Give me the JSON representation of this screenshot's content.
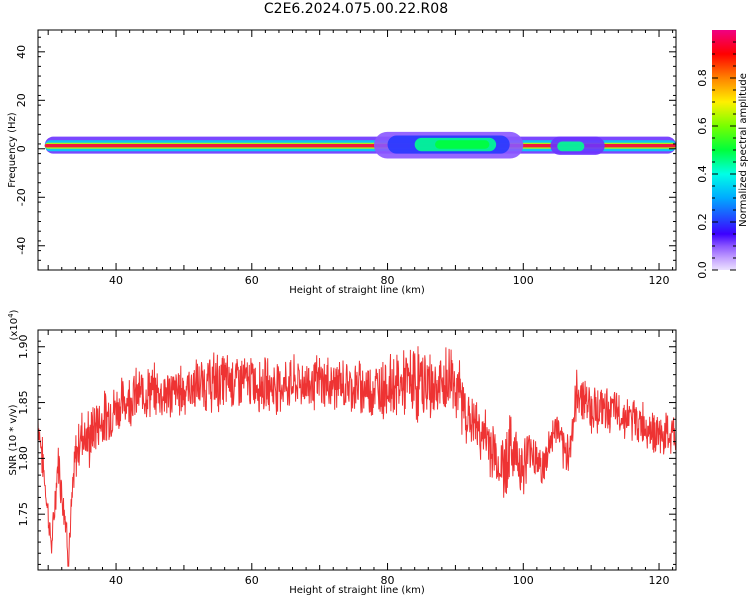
{
  "title": "C2E6.2024.075.00.22.R08",
  "colors": {
    "snr_line": "#ee3333",
    "axis": "#000000"
  },
  "chart_data": [
    {
      "type": "heatmap",
      "title": "C2E6.2024.075.00.22.R08",
      "xlabel": "Height of straight line (km)",
      "ylabel": "Frequency (Hz)",
      "xlim": [
        28.5,
        122.5
      ],
      "ylim": [
        -50,
        49
      ],
      "x_ticks": [
        40,
        60,
        80,
        100,
        120
      ],
      "y_ticks": [
        -40,
        -20,
        0,
        20,
        40
      ],
      "colorbar": {
        "label": "Normalized spectral amplitude",
        "ticks": [
          "0.0",
          "0.2",
          "0.4",
          "0.6",
          "0.8"
        ],
        "range": [
          0,
          1
        ],
        "colormap": "rainbow"
      },
      "bands": [
        {
          "x": [
            29.5,
            122.5
          ],
          "y": [
            -2,
            5
          ],
          "level": 0.12
        },
        {
          "x": [
            29.5,
            122.5
          ],
          "y": [
            -1,
            3.5
          ],
          "level": 0.35
        },
        {
          "x": [
            29.5,
            122.5
          ],
          "y": [
            0,
            2.5
          ],
          "level": 0.65
        },
        {
          "x": [
            29.5,
            122.5
          ],
          "y": [
            0.6,
            2.0
          ],
          "level": 0.95
        },
        {
          "x": [
            78,
            100
          ],
          "y": [
            -4,
            7
          ],
          "level": 0.1
        },
        {
          "x": [
            80,
            98
          ],
          "y": [
            -2,
            5.5
          ],
          "level": 0.2
        },
        {
          "x": [
            84,
            96
          ],
          "y": [
            -1,
            4.5
          ],
          "level": 0.45
        },
        {
          "x": [
            87,
            95
          ],
          "y": [
            0,
            3.5
          ],
          "level": 0.5
        },
        {
          "x": [
            104,
            112
          ],
          "y": [
            -2.5,
            5
          ],
          "level": 0.12
        },
        {
          "x": [
            105,
            109
          ],
          "y": [
            -1,
            3
          ],
          "level": 0.45
        }
      ]
    },
    {
      "type": "line",
      "xlabel": "Height of straight line (km)",
      "ylabel": "SNR (10 * v/v)",
      "y_scale_label": "(x10",
      "y_scale_exponent": "4",
      "y_scale_suffix": ")",
      "xlim": [
        28.5,
        122.5
      ],
      "ylim": [
        1.7,
        1.915
      ],
      "x_ticks": [
        40,
        60,
        80,
        100,
        120
      ],
      "y_ticks": [
        "1.75",
        "1.80",
        "1.85",
        "1.90"
      ],
      "series": [
        {
          "color": "#ee3333",
          "x": [
            28.5,
            29.5,
            30.5,
            31.0,
            31.5,
            32.0,
            32.5,
            33.0,
            34.0,
            35.0,
            36.0,
            37.0,
            38.0,
            40.0,
            42.0,
            45.0,
            48.0,
            50.0,
            52.0,
            55.0,
            58.0,
            60.0,
            63.0,
            66.0,
            70.0,
            74.0,
            78.0,
            80.0,
            82.0,
            84.0,
            86.0,
            88.0,
            89.5,
            91.0,
            92.0,
            93.0,
            94.0,
            95.0,
            96.0,
            97.0,
            98.0,
            99.0,
            100.0,
            101.0,
            102.0,
            103.0,
            104.0,
            105.0,
            106.0,
            107.0,
            108.0,
            109.0,
            110.0,
            112.0,
            114.0,
            116.0,
            118.0,
            120.0,
            122.5
          ],
          "y": [
            1.835,
            1.78,
            1.72,
            1.76,
            1.8,
            1.77,
            1.75,
            1.715,
            1.8,
            1.825,
            1.815,
            1.83,
            1.835,
            1.845,
            1.855,
            1.86,
            1.858,
            1.862,
            1.865,
            1.868,
            1.87,
            1.868,
            1.865,
            1.867,
            1.868,
            1.865,
            1.862,
            1.865,
            1.866,
            1.868,
            1.865,
            1.862,
            1.875,
            1.85,
            1.835,
            1.83,
            1.82,
            1.815,
            1.8,
            1.79,
            1.81,
            1.805,
            1.79,
            1.81,
            1.8,
            1.79,
            1.815,
            1.83,
            1.8,
            1.815,
            1.86,
            1.855,
            1.845,
            1.845,
            1.84,
            1.835,
            1.83,
            1.82,
            1.82
          ],
          "noise": [
            0.02,
            0.02,
            0.01,
            0.02,
            0.02,
            0.02,
            0.02,
            0.02,
            0.025,
            0.025,
            0.03,
            0.025,
            0.025,
            0.025,
            0.025,
            0.025,
            0.025,
            0.025,
            0.025,
            0.03,
            0.025,
            0.025,
            0.025,
            0.025,
            0.025,
            0.025,
            0.025,
            0.03,
            0.03,
            0.035,
            0.035,
            0.035,
            0.035,
            0.03,
            0.025,
            0.025,
            0.025,
            0.03,
            0.035,
            0.035,
            0.03,
            0.025,
            0.03,
            0.025,
            0.02,
            0.02,
            0.02,
            0.02,
            0.02,
            0.025,
            0.025,
            0.025,
            0.025,
            0.02,
            0.02,
            0.02,
            0.02,
            0.02,
            0.02
          ]
        }
      ]
    }
  ]
}
